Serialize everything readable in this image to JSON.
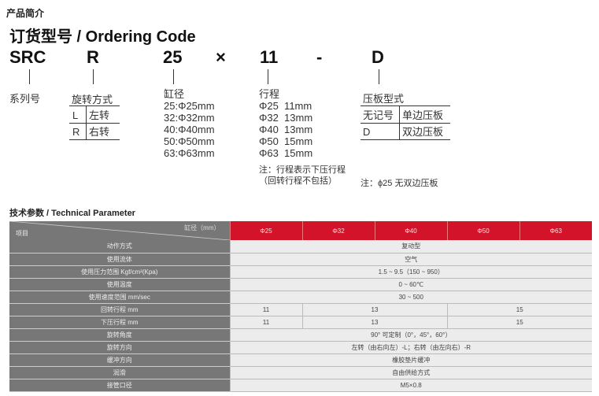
{
  "section_title": "产品简介",
  "ordering": {
    "title": "订货型号 / Ordering Code",
    "code": {
      "series": "SRC",
      "rotation": "R",
      "bore": "25",
      "times": "×",
      "stroke": "11",
      "dash": "-",
      "plate": "D"
    },
    "series_label": "系列号",
    "rotation": {
      "label": "旋转方式",
      "rows": [
        [
          "L",
          "左转"
        ],
        [
          "R",
          "右转"
        ]
      ]
    },
    "bore": {
      "label": "缸径",
      "items": [
        "25:Φ25mm",
        "32:Φ32mm",
        "40:Φ40mm",
        "50:Φ50mm",
        "63:Φ63mm"
      ]
    },
    "stroke": {
      "label": "行程",
      "items": [
        "Φ25  11mm",
        "Φ32  13mm",
        "Φ40  13mm",
        "Φ50  15mm",
        "Φ63  15mm"
      ],
      "note1": "注：行程表示下压行程",
      "note2": "（回转行程不包括）"
    },
    "plate": {
      "label": "压板型式",
      "rows": [
        [
          "无记号",
          "单边压板"
        ],
        [
          "D",
          "双边压板"
        ]
      ],
      "note": "注：ϕ25 无双边压板"
    }
  },
  "tech": {
    "title": "技术参数 / Technical Parameter",
    "corner_top": "缸径（mm）",
    "corner_bottom": "项目",
    "sizes": [
      "Φ25",
      "Φ32",
      "Φ40",
      "Φ50",
      "Φ63"
    ],
    "rows": [
      {
        "label": "动作方式",
        "value": "复动型"
      },
      {
        "label": "使用流体",
        "value": "空气"
      },
      {
        "label": "使用压力范围 Kgf/cm²(Kpa)",
        "value": "1.5 ~ 9.5（150 ~ 950）"
      },
      {
        "label": "使用温度",
        "value": "0 ~ 60℃"
      },
      {
        "label": "使用速度范围 mm/sec",
        "value": "30 ~ 500"
      },
      {
        "label": "回转行程 mm",
        "v25": "11",
        "v32_40": "13",
        "v50_63": "15"
      },
      {
        "label": "下压行程 mm",
        "v25": "11",
        "v32_40": "13",
        "v50_63": "15"
      },
      {
        "label": "旋转角度",
        "value": "90° 可定制（0°，45°，60°）"
      },
      {
        "label": "旋转方向",
        "value": "左转（由右向左）-L；右转（由左向右）-R"
      },
      {
        "label": "缓冲方向",
        "value": "橡胶垫片缓冲"
      },
      {
        "label": "润滑",
        "value": "自由供给方式"
      },
      {
        "label": "接管口径",
        "value": "M5×0.8"
      }
    ]
  },
  "colors": {
    "accent": "#d3132a",
    "label_bg": "#777777",
    "cell_bg": "#ececec"
  }
}
